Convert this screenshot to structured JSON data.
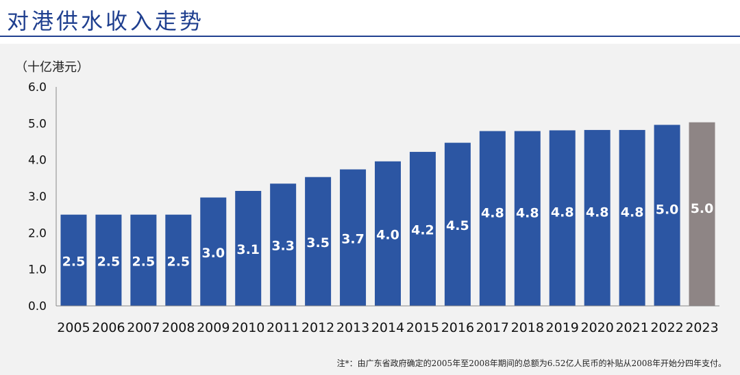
{
  "title": "对港供水收入走势",
  "unit_label": "（十亿港元）",
  "footnote": "注*：由广东省政府确定的2005年至2008年期间的总额为6.52亿人民币的补贴从2008年开始分四年支付。",
  "colors": {
    "title": "#1f3f8f",
    "bar_primary": "#2c56a3",
    "bar_highlight": "#8e8585",
    "data_label": "#ffffff",
    "axis_text": "#111111"
  },
  "chart_data": {
    "type": "bar",
    "title": "",
    "xlabel": "",
    "ylabel": "（十亿港元）",
    "ylim": [
      0,
      6
    ],
    "y_ticks": [
      "0.0",
      "1.0",
      "2.0",
      "3.0",
      "4.0",
      "5.0",
      "6.0"
    ],
    "categories": [
      "2005",
      "2006",
      "2007",
      "2008",
      "2009",
      "2010",
      "2011",
      "2012",
      "2013",
      "2014",
      "2015",
      "2016",
      "2017",
      "2018",
      "2019",
      "2020",
      "2021",
      "2022",
      "2023"
    ],
    "values": [
      2.5,
      2.5,
      2.5,
      2.5,
      2.97,
      3.15,
      3.35,
      3.53,
      3.74,
      3.96,
      4.22,
      4.47,
      4.79,
      4.79,
      4.81,
      4.82,
      4.82,
      4.96,
      5.03
    ],
    "labels": [
      "2.5",
      "2.5",
      "2.5",
      "2.5",
      "3.0",
      "3.1",
      "3.3",
      "3.5",
      "3.7",
      "4.0",
      "4.2",
      "4.5",
      "4.8",
      "4.8",
      "4.8",
      "4.8",
      "4.8",
      "5.0",
      "5.0"
    ],
    "highlight_category": "2023",
    "grid": false,
    "legend": "none"
  }
}
